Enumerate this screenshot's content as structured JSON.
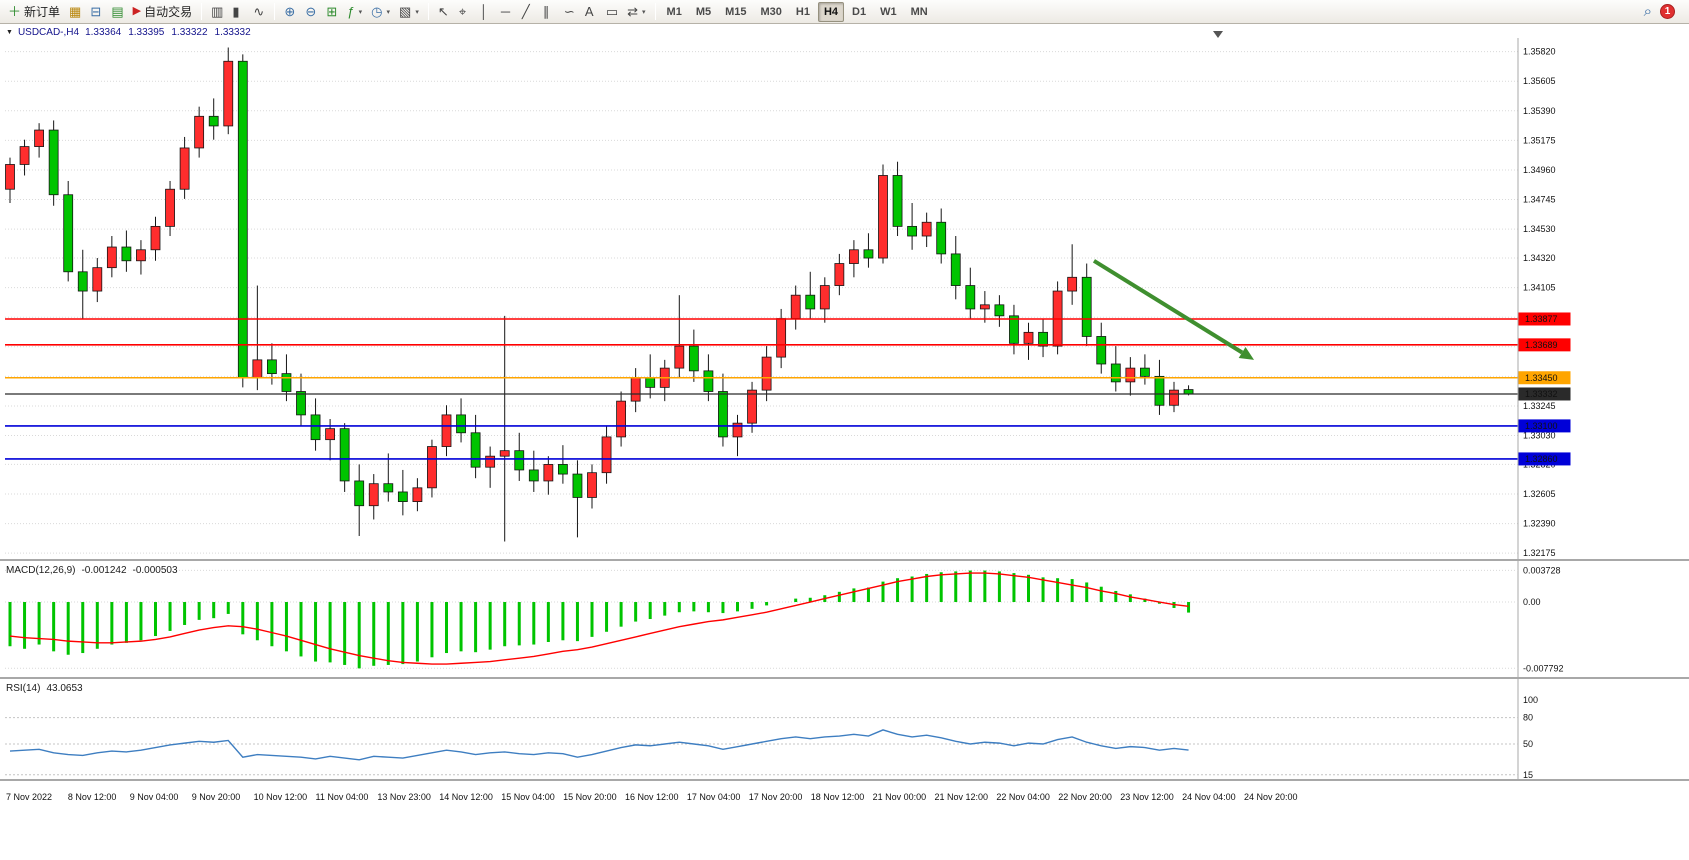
{
  "app": {
    "toolbar": {
      "new_order_label": "新订单",
      "autotrade_label": "自动交易",
      "timeframes": [
        "M1",
        "M5",
        "M15",
        "M30",
        "H1",
        "H4",
        "D1",
        "W1",
        "MN"
      ],
      "active_timeframe": "H4",
      "notification_count": "1"
    },
    "chart": {
      "symbol_title": "USDCAD-,H4",
      "ohlc": {
        "open": "1.33364",
        "high": "1.33395",
        "low": "1.33322",
        "close": "1.33332"
      }
    }
  },
  "icons": {
    "new_order": "＋",
    "market_watch": "▦",
    "print": "⊟",
    "data_window": "▤",
    "autotrade": "▶",
    "chart_bar": "▥",
    "chart_candle": "▮",
    "chart_line": "∿",
    "zoom_in": "⊕",
    "zoom_out": "⊖",
    "tile_windows": "⊞",
    "indicators": "ƒ",
    "periods": "◷",
    "template": "▧",
    "cursor": "↖",
    "crosshair": "⌖",
    "vline": "│",
    "hline": "─",
    "trendline": "╱",
    "channel": "∥",
    "fibonacci": "∽",
    "text": "A",
    "text_label": "▭",
    "arrows": "⇄",
    "caret": "▾",
    "search": "⌕",
    "dropdown_triangle": "▼",
    "shift_marker": "▼"
  },
  "colors": {
    "candle_up": "#ff2d2d",
    "candle_down": "#00c400",
    "candle_outline": "#151515",
    "grid": "#d9d9d9",
    "macd_histogram": "#00c400",
    "macd_signal": "#ff0000",
    "rsi_line": "#3e7ec1",
    "arrow": "#3f8f2f",
    "axis_text": "#111111",
    "hline_red": "#ff0000",
    "hline_orange": "#ffa500",
    "hline_blue": "#0000d8",
    "current_price": "#2a2a2a",
    "panel_sep": "#a8a8a8"
  },
  "chart_data": {
    "type": "candlestick",
    "main": {
      "symbol": "USDCAD",
      "timeframe": "H4",
      "y_axis_labels": [
        "1.35820",
        "1.35605",
        "1.35390",
        "1.35175",
        "1.34960",
        "1.34745",
        "1.34530",
        "1.34320",
        "1.34105",
        "1.33890",
        "1.33675",
        "1.33460",
        "1.33245",
        "1.33030",
        "1.32820",
        "1.32605",
        "1.32390",
        "1.32175"
      ],
      "ylim": [
        1.3214,
        1.3589
      ],
      "candles": [
        [
          1.3482,
          1.3505,
          1.3472,
          1.35
        ],
        [
          1.35,
          1.3518,
          1.3492,
          1.3513
        ],
        [
          1.3513,
          1.353,
          1.3505,
          1.3525
        ],
        [
          1.3525,
          1.3532,
          1.347,
          1.3478
        ],
        [
          1.3478,
          1.3488,
          1.3415,
          1.3422
        ],
        [
          1.3422,
          1.3438,
          1.3388,
          1.3408
        ],
        [
          1.3408,
          1.3432,
          1.34,
          1.3425
        ],
        [
          1.3425,
          1.3448,
          1.3418,
          1.344
        ],
        [
          1.344,
          1.3452,
          1.3422,
          1.343
        ],
        [
          1.343,
          1.3445,
          1.342,
          1.3438
        ],
        [
          1.3438,
          1.3462,
          1.343,
          1.3455
        ],
        [
          1.3455,
          1.3488,
          1.3448,
          1.3482
        ],
        [
          1.3482,
          1.352,
          1.3475,
          1.3512
        ],
        [
          1.3512,
          1.3542,
          1.3505,
          1.3535
        ],
        [
          1.3535,
          1.3548,
          1.3518,
          1.3528
        ],
        [
          1.3528,
          1.3585,
          1.3522,
          1.3575
        ],
        [
          1.3575,
          1.358,
          1.3338,
          1.3345
        ],
        [
          1.3345,
          1.3412,
          1.3336,
          1.3358
        ],
        [
          1.3358,
          1.337,
          1.334,
          1.3348
        ],
        [
          1.3348,
          1.3362,
          1.3328,
          1.3335
        ],
        [
          1.3335,
          1.3348,
          1.331,
          1.3318
        ],
        [
          1.3318,
          1.333,
          1.3292,
          1.33
        ],
        [
          1.33,
          1.3315,
          1.3285,
          1.3308
        ],
        [
          1.3308,
          1.3312,
          1.3262,
          1.327
        ],
        [
          1.327,
          1.3282,
          1.323,
          1.3252
        ],
        [
          1.3252,
          1.3275,
          1.3242,
          1.3268
        ],
        [
          1.3268,
          1.329,
          1.3255,
          1.3262
        ],
        [
          1.3262,
          1.3278,
          1.3245,
          1.3255
        ],
        [
          1.3255,
          1.3272,
          1.3248,
          1.3265
        ],
        [
          1.3265,
          1.33,
          1.3258,
          1.3295
        ],
        [
          1.3295,
          1.3325,
          1.3288,
          1.3318
        ],
        [
          1.3318,
          1.333,
          1.3298,
          1.3305
        ],
        [
          1.3305,
          1.3318,
          1.3272,
          1.328
        ],
        [
          1.328,
          1.3295,
          1.3265,
          1.3288
        ],
        [
          1.3288,
          1.339,
          1.3226,
          1.3292
        ],
        [
          1.3292,
          1.3305,
          1.327,
          1.3278
        ],
        [
          1.3278,
          1.3292,
          1.3262,
          1.327
        ],
        [
          1.327,
          1.3288,
          1.326,
          1.3282
        ],
        [
          1.3282,
          1.3296,
          1.3268,
          1.3275
        ],
        [
          1.3275,
          1.3285,
          1.3229,
          1.3258
        ],
        [
          1.3258,
          1.3282,
          1.325,
          1.3276
        ],
        [
          1.3276,
          1.331,
          1.3268,
          1.3302
        ],
        [
          1.3302,
          1.3335,
          1.3295,
          1.3328
        ],
        [
          1.3328,
          1.3352,
          1.332,
          1.3345
        ],
        [
          1.3345,
          1.3362,
          1.333,
          1.3338
        ],
        [
          1.3338,
          1.3358,
          1.3328,
          1.3352
        ],
        [
          1.3352,
          1.3405,
          1.3345,
          1.3368
        ],
        [
          1.3368,
          1.338,
          1.3342,
          1.335
        ],
        [
          1.335,
          1.3362,
          1.3328,
          1.3335
        ],
        [
          1.3335,
          1.3348,
          1.3295,
          1.3302
        ],
        [
          1.3302,
          1.3318,
          1.3288,
          1.3312
        ],
        [
          1.3312,
          1.3342,
          1.3305,
          1.3336
        ],
        [
          1.3336,
          1.3368,
          1.3328,
          1.336
        ],
        [
          1.336,
          1.3395,
          1.3352,
          1.3388
        ],
        [
          1.3388,
          1.3412,
          1.338,
          1.3405
        ],
        [
          1.3405,
          1.3422,
          1.3388,
          1.3395
        ],
        [
          1.3395,
          1.3418,
          1.3385,
          1.3412
        ],
        [
          1.3412,
          1.3435,
          1.3405,
          1.3428
        ],
        [
          1.3428,
          1.3445,
          1.3418,
          1.3438
        ],
        [
          1.3438,
          1.345,
          1.3425,
          1.3432
        ],
        [
          1.3432,
          1.35,
          1.3428,
          1.3492
        ],
        [
          1.3492,
          1.3502,
          1.3448,
          1.3455
        ],
        [
          1.3455,
          1.3472,
          1.3438,
          1.3448
        ],
        [
          1.3448,
          1.3465,
          1.344,
          1.3458
        ],
        [
          1.3458,
          1.3468,
          1.3428,
          1.3435
        ],
        [
          1.3435,
          1.3448,
          1.3402,
          1.3412
        ],
        [
          1.3412,
          1.3425,
          1.3388,
          1.3395
        ],
        [
          1.3395,
          1.3408,
          1.3385,
          1.3398
        ],
        [
          1.3398,
          1.3405,
          1.3382,
          1.339
        ],
        [
          1.339,
          1.3398,
          1.3362,
          1.337
        ],
        [
          1.337,
          1.3385,
          1.3358,
          1.3378
        ],
        [
          1.3378,
          1.3388,
          1.336,
          1.3368
        ],
        [
          1.3368,
          1.3415,
          1.3362,
          1.3408
        ],
        [
          1.3408,
          1.3442,
          1.3398,
          1.3418
        ],
        [
          1.3418,
          1.3428,
          1.3368,
          1.3375
        ],
        [
          1.3375,
          1.3385,
          1.3348,
          1.3355
        ],
        [
          1.3355,
          1.3368,
          1.3335,
          1.3342
        ],
        [
          1.3342,
          1.336,
          1.3332,
          1.3352
        ],
        [
          1.3352,
          1.3362,
          1.334,
          1.3346
        ],
        [
          1.3346,
          1.3358,
          1.3318,
          1.3325
        ],
        [
          1.3325,
          1.3342,
          1.332,
          1.3336
        ],
        [
          1.33364,
          1.33395,
          1.33322,
          1.33332
        ]
      ],
      "hlines": [
        {
          "price": 1.33877,
          "label": "1.33877",
          "color": "#ff0000",
          "role": "resistance"
        },
        {
          "price": 1.33689,
          "label": "1.33689",
          "color": "#ff0000",
          "role": "resistance"
        },
        {
          "price": 1.3345,
          "label": "1.33450",
          "color": "#ffa500",
          "role": "pivot"
        },
        {
          "price": 1.33332,
          "label": "1.33332",
          "color": "#2a2a2a",
          "role": "current_price"
        },
        {
          "price": 1.331,
          "label": "1.33100",
          "color": "#0000d8",
          "role": "support"
        },
        {
          "price": 1.3286,
          "label": "1.32860",
          "color": "#0000d8",
          "role": "support"
        }
      ],
      "arrow": {
        "from_bar": 74.5,
        "from_price": 1.343,
        "to_bar": 85.5,
        "to_price": 1.3358,
        "color": "#3f8f2f"
      }
    },
    "macd": {
      "name": "MACD(12,26,9)",
      "main_value": "-0.001242",
      "signal_value": "-0.000503",
      "axis_labels": [
        "0.003728",
        "0.00",
        "-0.007792"
      ],
      "ylim": [
        -0.0087,
        0.004
      ],
      "histogram": [
        -0.0052,
        -0.0055,
        -0.005,
        -0.0058,
        -0.0062,
        -0.006,
        -0.0055,
        -0.005,
        -0.0048,
        -0.0045,
        -0.004,
        -0.0034,
        -0.0027,
        -0.0021,
        -0.0019,
        -0.0014,
        -0.0038,
        -0.0045,
        -0.0052,
        -0.0058,
        -0.0064,
        -0.007,
        -0.0071,
        -0.0074,
        -0.0078,
        -0.0075,
        -0.0074,
        -0.0073,
        -0.007,
        -0.0065,
        -0.006,
        -0.0058,
        -0.0059,
        -0.0056,
        -0.0052,
        -0.0051,
        -0.005,
        -0.0047,
        -0.0045,
        -0.0046,
        -0.0041,
        -0.0035,
        -0.0029,
        -0.0023,
        -0.002,
        -0.0016,
        -0.0012,
        -0.0011,
        -0.0012,
        -0.0013,
        -0.0011,
        -0.0008,
        -0.0004,
        0.0,
        0.0004,
        0.0005,
        0.0008,
        0.0012,
        0.0016,
        0.0017,
        0.0024,
        0.0028,
        0.003,
        0.0033,
        0.0035,
        0.0036,
        0.0037,
        0.0037,
        0.0036,
        0.0034,
        0.0032,
        0.0029,
        0.0028,
        0.0027,
        0.0023,
        0.0018,
        0.0013,
        0.0009,
        0.0004,
        -0.0002,
        -0.0007,
        -0.001242
      ],
      "signal": [
        -0.004,
        -0.0042,
        -0.0043,
        -0.0044,
        -0.0046,
        -0.0047,
        -0.0048,
        -0.0048,
        -0.0047,
        -0.0046,
        -0.0044,
        -0.0041,
        -0.0037,
        -0.0033,
        -0.003,
        -0.0028,
        -0.0029,
        -0.0032,
        -0.0036,
        -0.004,
        -0.0045,
        -0.005,
        -0.0055,
        -0.0059,
        -0.0063,
        -0.0066,
        -0.0069,
        -0.0071,
        -0.0072,
        -0.0073,
        -0.0073,
        -0.0072,
        -0.0071,
        -0.007,
        -0.0068,
        -0.0066,
        -0.0064,
        -0.0061,
        -0.0058,
        -0.0056,
        -0.0053,
        -0.0049,
        -0.0045,
        -0.0041,
        -0.0037,
        -0.0033,
        -0.0029,
        -0.0026,
        -0.0023,
        -0.0021,
        -0.0018,
        -0.0015,
        -0.0012,
        -0.0008,
        -0.0004,
        0.0,
        0.0004,
        0.0008,
        0.0012,
        0.0016,
        0.002,
        0.0024,
        0.0027,
        0.003,
        0.0032,
        0.0033,
        0.0034,
        0.0034,
        0.0033,
        0.0031,
        0.0029,
        0.0026,
        0.0023,
        0.002,
        0.0017,
        0.0013,
        0.001,
        0.0006,
        0.0003,
        0.0,
        -0.0003,
        -0.000503
      ]
    },
    "rsi": {
      "name": "RSI(14)",
      "value": "43.0653",
      "axis_labels": [
        "100",
        "80",
        "50",
        "15"
      ],
      "levels": [
        80,
        50,
        15
      ],
      "ylim": [
        0,
        100
      ],
      "values": [
        42,
        43,
        44,
        40,
        38,
        37,
        40,
        42,
        41,
        43,
        46,
        49,
        51,
        53,
        52,
        54,
        35,
        38,
        37,
        36,
        35,
        33,
        36,
        34,
        32,
        36,
        35,
        34,
        37,
        40,
        43,
        41,
        38,
        40,
        41,
        39,
        38,
        40,
        39,
        35,
        38,
        42,
        46,
        49,
        48,
        50,
        52,
        50,
        48,
        44,
        47,
        50,
        53,
        56,
        58,
        56,
        58,
        59,
        61,
        59,
        66,
        61,
        58,
        60,
        57,
        53,
        50,
        52,
        51,
        48,
        51,
        50,
        55,
        58,
        52,
        48,
        45,
        47,
        46,
        43,
        45,
        43.07
      ]
    },
    "time_axis": [
      "7 Nov 2022",
      "8 Nov 12:00",
      "9 Nov 04:00",
      "9 Nov 20:00",
      "10 Nov 12:00",
      "11 Nov 04:00",
      "13 Nov 23:00",
      "14 Nov 12:00",
      "15 Nov 04:00",
      "15 Nov 20:00",
      "16 Nov 12:00",
      "17 Nov 04:00",
      "17 Nov 20:00",
      "18 Nov 12:00",
      "21 Nov 00:00",
      "21 Nov 12:00",
      "22 Nov 04:00",
      "22 Nov 20:00",
      "23 Nov 12:00",
      "24 Nov 04:00",
      "24 Nov 20:00"
    ]
  }
}
